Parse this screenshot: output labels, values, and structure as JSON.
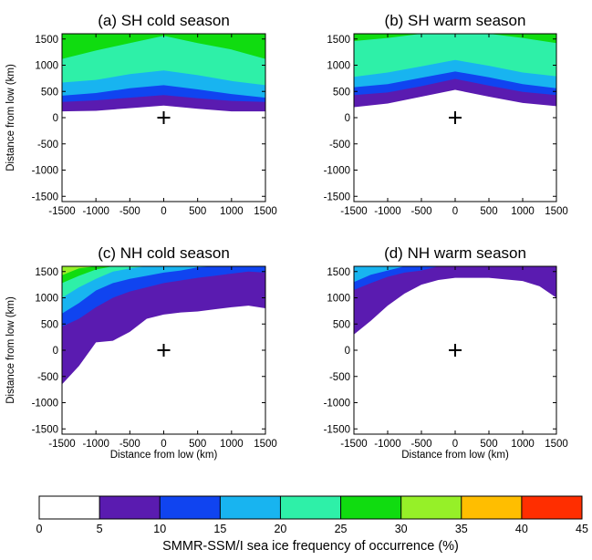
{
  "chart_data": [
    {
      "type": "area",
      "title": "(a) SH cold season",
      "xlabel": "",
      "ylabel": "Distance from low (km)",
      "xlim": [
        -1500,
        1500
      ],
      "ylim": [
        -1600,
        1600
      ],
      "xticks": [
        -1500,
        -1000,
        -500,
        0,
        500,
        1000,
        1500
      ],
      "yticks": [
        -1500,
        -1000,
        -500,
        0,
        500,
        1000,
        1500
      ],
      "low_marker": [
        0,
        0
      ],
      "x": [
        -1500,
        -1000,
        -500,
        0,
        500,
        1000,
        1500
      ],
      "levels": [
        {
          "min": 5,
          "y": [
            120,
            130,
            180,
            230,
            170,
            120,
            120
          ]
        },
        {
          "min": 10,
          "y": [
            300,
            330,
            380,
            430,
            370,
            320,
            300
          ]
        },
        {
          "min": 15,
          "y": [
            420,
            470,
            560,
            620,
            540,
            450,
            380
          ]
        },
        {
          "min": 20,
          "y": [
            670,
            720,
            830,
            900,
            810,
            700,
            620
          ]
        },
        {
          "min": 25,
          "y": [
            1120,
            1280,
            1420,
            1560,
            1420,
            1300,
            1120
          ]
        },
        {
          "min": 30,
          "y": [
            1600,
            1600,
            1600,
            1600,
            1600,
            1600,
            1600
          ]
        }
      ]
    },
    {
      "type": "area",
      "title": "(b) SH warm season",
      "xlabel": "",
      "ylabel": "",
      "xlim": [
        -1500,
        1500
      ],
      "ylim": [
        -1600,
        1600
      ],
      "xticks": [
        -1500,
        -1000,
        -500,
        0,
        500,
        1000,
        1500
      ],
      "yticks": [
        -1500,
        -1000,
        -500,
        0,
        500,
        1000,
        1500
      ],
      "low_marker": [
        0,
        0
      ],
      "x": [
        -1500,
        -1000,
        -500,
        0,
        500,
        1000,
        1500
      ],
      "levels": [
        {
          "min": 5,
          "y": [
            200,
            270,
            400,
            530,
            400,
            280,
            220
          ]
        },
        {
          "min": 10,
          "y": [
            430,
            480,
            600,
            740,
            610,
            490,
            430
          ]
        },
        {
          "min": 15,
          "y": [
            580,
            640,
            760,
            880,
            770,
            640,
            560
          ]
        },
        {
          "min": 20,
          "y": [
            780,
            860,
            980,
            1100,
            990,
            860,
            790
          ]
        },
        {
          "min": 25,
          "y": [
            1460,
            1520,
            1600,
            1600,
            1600,
            1520,
            1420
          ]
        },
        {
          "min": 30,
          "y": [
            1600,
            1600,
            1600,
            1600,
            1600,
            1600,
            1600
          ]
        }
      ]
    },
    {
      "type": "area",
      "title": "(c) NH cold season",
      "xlabel": "Distance from low (km)",
      "ylabel": "Distance from low (km)",
      "xlim": [
        -1500,
        1500
      ],
      "ylim": [
        -1600,
        1600
      ],
      "xticks": [
        -1500,
        -1000,
        -500,
        0,
        500,
        1000,
        1500
      ],
      "yticks": [
        -1500,
        -1000,
        -500,
        0,
        500,
        1000,
        1500
      ],
      "low_marker": [
        0,
        0
      ],
      "x": [
        -1500,
        -1250,
        -1000,
        -750,
        -500,
        -250,
        0,
        250,
        500,
        750,
        1000,
        1250,
        1500
      ],
      "levels": [
        {
          "min": 5,
          "y": [
            -650,
            -300,
            150,
            180,
            350,
            600,
            680,
            720,
            740,
            780,
            820,
            850,
            800
          ]
        },
        {
          "min": 10,
          "y": [
            450,
            600,
            820,
            1000,
            1120,
            1200,
            1280,
            1330,
            1380,
            1420,
            1460,
            1500,
            1480
          ]
        },
        {
          "min": 15,
          "y": [
            700,
            900,
            1140,
            1280,
            1360,
            1420,
            1480,
            1520,
            1580,
            1600,
            1600,
            1600,
            1600
          ]
        },
        {
          "min": 20,
          "y": [
            1000,
            1200,
            1360,
            1500,
            1560,
            1600,
            1600,
            1600,
            1600,
            1600,
            1600,
            1600,
            1600
          ]
        },
        {
          "min": 25,
          "y": [
            1280,
            1420,
            1540,
            1600,
            1600,
            1600,
            1600,
            1600,
            1600,
            1600,
            1600,
            1600,
            1600
          ]
        },
        {
          "min": 30,
          "y": [
            1430,
            1560,
            1600,
            1600,
            1600,
            1600,
            1600,
            1600,
            1600,
            1600,
            1600,
            1600,
            1600
          ]
        },
        {
          "min": 35,
          "y": [
            1600,
            1600,
            1600,
            1600,
            1600,
            1600,
            1600,
            1600,
            1600,
            1600,
            1600,
            1600,
            1600
          ]
        }
      ]
    },
    {
      "type": "area",
      "title": "(d) NH warm season",
      "xlabel": "Distance from low (km)",
      "ylabel": "",
      "xlim": [
        -1500,
        1500
      ],
      "ylim": [
        -1600,
        1600
      ],
      "xticks": [
        -1500,
        -1000,
        -500,
        0,
        500,
        1000,
        1500
      ],
      "yticks": [
        -1500,
        -1000,
        -500,
        0,
        500,
        1000,
        1500
      ],
      "low_marker": [
        0,
        0
      ],
      "x": [
        -1500,
        -1250,
        -1000,
        -750,
        -500,
        -250,
        0,
        250,
        500,
        750,
        1000,
        1250,
        1500
      ],
      "levels": [
        {
          "min": 5,
          "y": [
            300,
            560,
            850,
            1080,
            1250,
            1340,
            1380,
            1380,
            1380,
            1350,
            1320,
            1220,
            1000
          ]
        },
        {
          "min": 10,
          "y": [
            1150,
            1280,
            1400,
            1480,
            1520,
            1600,
            1600,
            1600,
            1600,
            1600,
            1600,
            1600,
            1600
          ]
        },
        {
          "min": 15,
          "y": [
            1300,
            1440,
            1520,
            1600,
            1600,
            1600,
            1600,
            1600,
            1600,
            1600,
            1600,
            1600,
            1600
          ]
        },
        {
          "min": 20,
          "y": [
            1600,
            1600,
            1600,
            1600,
            1600,
            1600,
            1600,
            1600,
            1600,
            1600,
            1600,
            1600,
            1600
          ]
        }
      ]
    }
  ],
  "colorbar": {
    "label": "SMMR-SSM/I sea ice frequency of occurrence (%)",
    "bounds": [
      0,
      5,
      10,
      15,
      20,
      25,
      30,
      35,
      40,
      45
    ],
    "tick_labels": [
      "0",
      "5",
      "10",
      "15",
      "20",
      "25",
      "30",
      "35",
      "40",
      "45"
    ],
    "colors": [
      "#ffffff",
      "#5a1bb0",
      "#1044f0",
      "#18b4f0",
      "#2ef0a8",
      "#10dc10",
      "#96f028",
      "#ffbe00",
      "#ff2e00"
    ]
  }
}
